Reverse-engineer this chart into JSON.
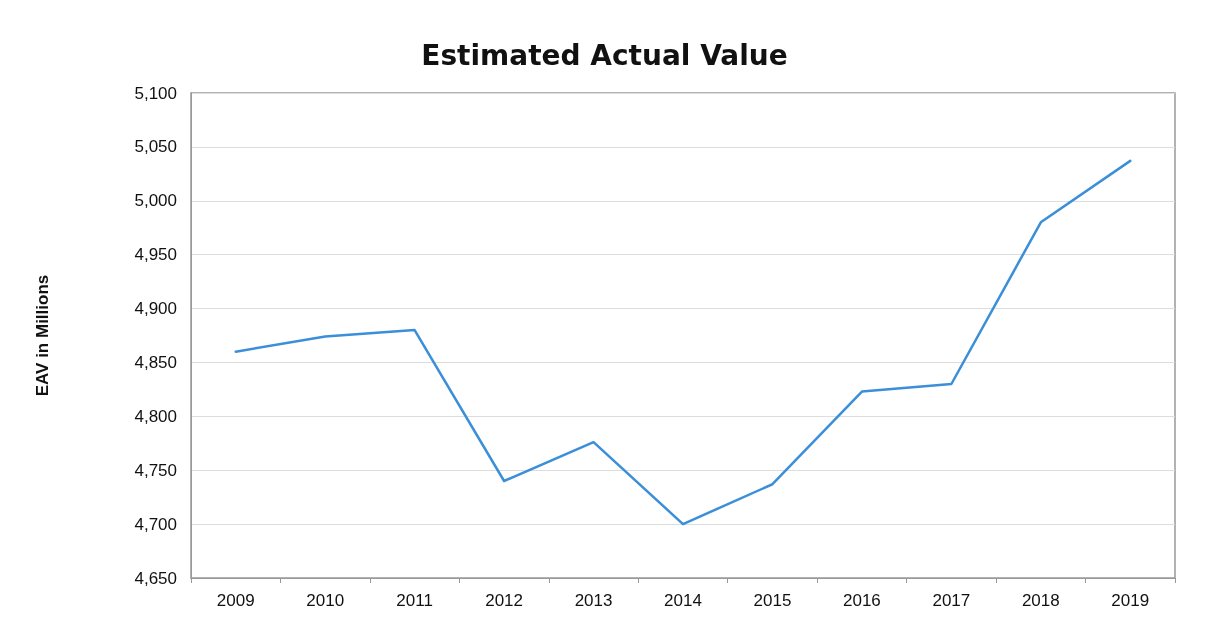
{
  "chart_data": {
    "type": "line",
    "title": "Estimated Actual Value",
    "ylabel": "EAV in Millions",
    "categories": [
      "2009",
      "2010",
      "2011",
      "2012",
      "2013",
      "2014",
      "2015",
      "2016",
      "2017",
      "2018",
      "2019"
    ],
    "series": [
      {
        "color": "#3b8fd9",
        "values": [
          4860,
          4874,
          4880,
          4740,
          4776,
          4700,
          4737,
          4823,
          4830,
          4980,
          5037
        ]
      }
    ],
    "ylim": [
      4650,
      5100
    ],
    "yticks": [
      {
        "value": 4650,
        "label": "4,650"
      },
      {
        "value": 4700,
        "label": "4,700"
      },
      {
        "value": 4750,
        "label": "4,750"
      },
      {
        "value": 4800,
        "label": "4,800"
      },
      {
        "value": 4850,
        "label": "4,850"
      },
      {
        "value": 4900,
        "label": "4,900"
      },
      {
        "value": 4950,
        "label": "4,950"
      },
      {
        "value": 5000,
        "label": "5,000"
      },
      {
        "value": 5050,
        "label": "5,050"
      },
      {
        "value": 5100,
        "label": "5,100"
      }
    ],
    "grid": "y",
    "marker": "none",
    "line_style": "solid"
  }
}
